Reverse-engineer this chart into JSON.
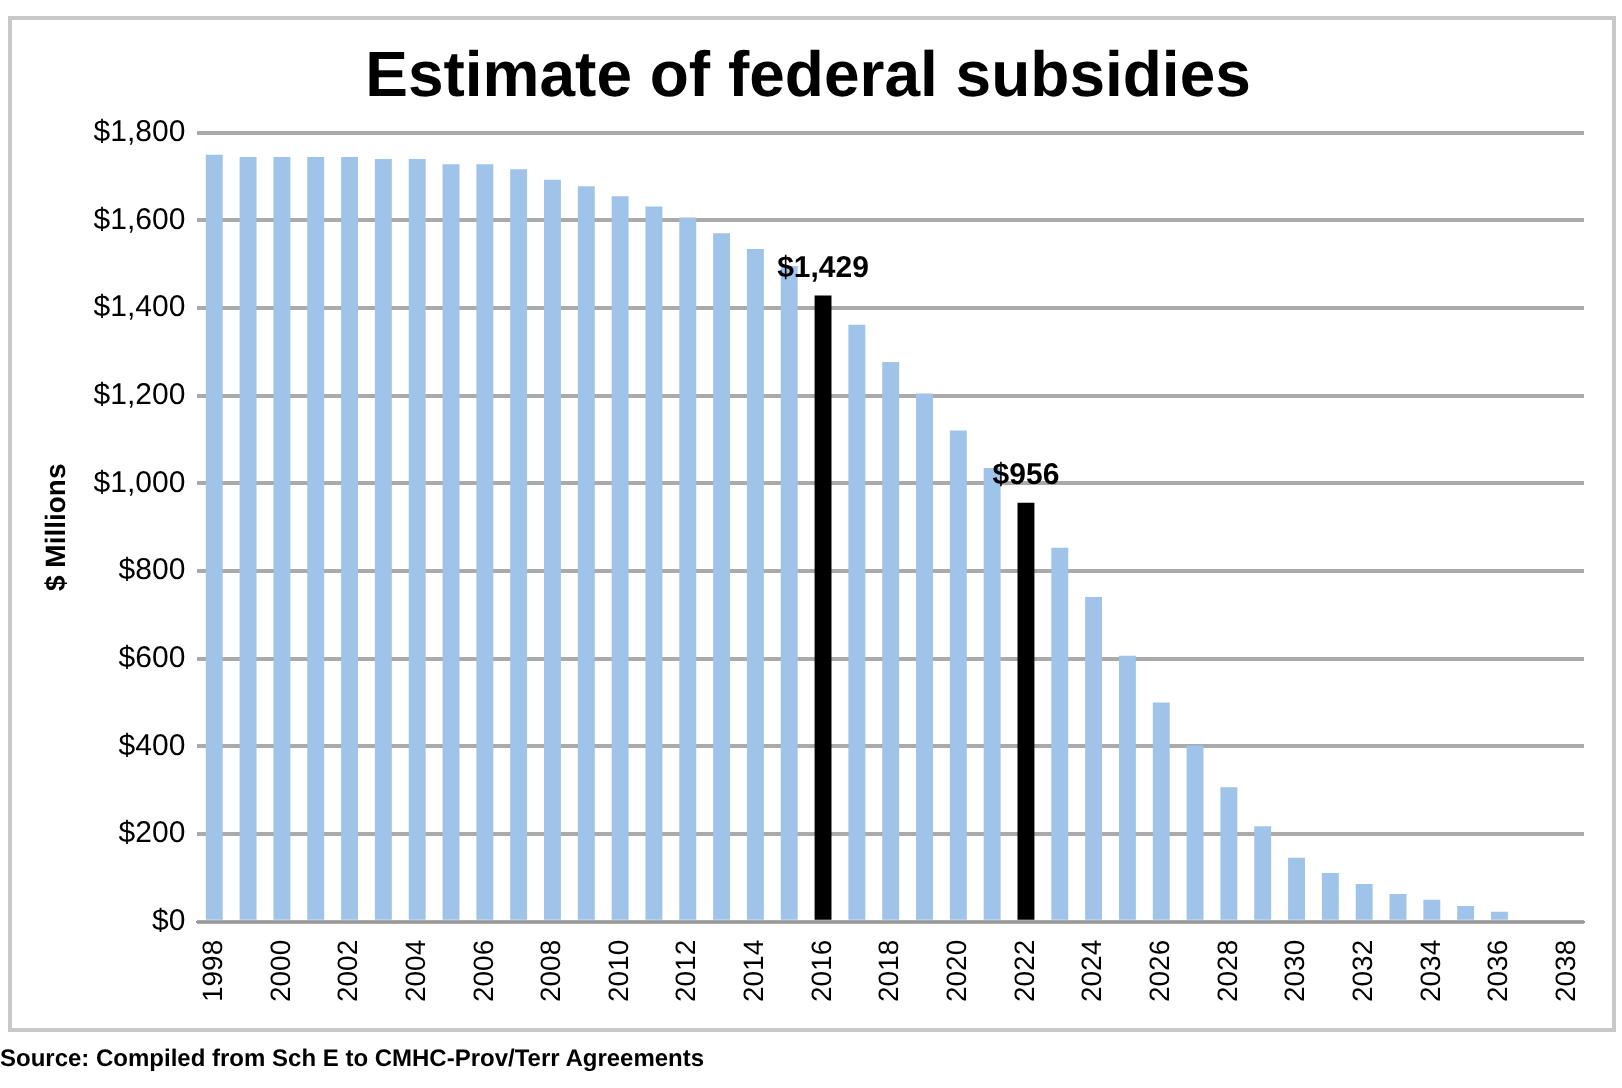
{
  "chart_data": {
    "type": "bar",
    "title": "Estimate of federal subsidies",
    "ylabel": "$ Millions",
    "categories": [
      "1998",
      null,
      "2000",
      null,
      "2002",
      null,
      "2004",
      null,
      "2006",
      null,
      "2008",
      null,
      "2010",
      null,
      "2012",
      null,
      "2014",
      null,
      "2016",
      null,
      "2018",
      null,
      "2020",
      null,
      "2022",
      null,
      "2024",
      null,
      "2026",
      null,
      "2028",
      null,
      "2030",
      null,
      "2032",
      null,
      "2034",
      null,
      "2036",
      null,
      "2038"
    ],
    "values": [
      1750,
      1745,
      1745,
      1745,
      1745,
      1740,
      1740,
      1728,
      1728,
      1717,
      1693,
      1678,
      1655,
      1632,
      1607,
      1571,
      1535,
      1496,
      1429,
      1362,
      1277,
      1205,
      1121,
      1035,
      956,
      853,
      741,
      607,
      500,
      402,
      307,
      218,
      146,
      111,
      86,
      63,
      50,
      36,
      23,
      0,
      0
    ],
    "colors": [
      "#9fc3e9",
      "#9fc3e9",
      "#9fc3e9",
      "#9fc3e9",
      "#9fc3e9",
      "#9fc3e9",
      "#9fc3e9",
      "#9fc3e9",
      "#9fc3e9",
      "#9fc3e9",
      "#9fc3e9",
      "#9fc3e9",
      "#9fc3e9",
      "#9fc3e9",
      "#9fc3e9",
      "#9fc3e9",
      "#9fc3e9",
      "#9fc3e9",
      "#000000",
      "#9fc3e9",
      "#9fc3e9",
      "#9fc3e9",
      "#9fc3e9",
      "#9fc3e9",
      "#000000",
      "#9fc3e9",
      "#9fc3e9",
      "#9fc3e9",
      "#9fc3e9",
      "#9fc3e9",
      "#9fc3e9",
      "#9fc3e9",
      "#9fc3e9",
      "#9fc3e9",
      "#9fc3e9",
      "#9fc3e9",
      "#9fc3e9",
      "#9fc3e9",
      "#9fc3e9",
      "#9fc3e9",
      "#9fc3e9"
    ],
    "value_labels": [
      null,
      null,
      null,
      null,
      null,
      null,
      null,
      null,
      null,
      null,
      null,
      null,
      null,
      null,
      null,
      null,
      null,
      null,
      "$1,429",
      null,
      null,
      null,
      null,
      null,
      "$956",
      null,
      null,
      null,
      null,
      null,
      null,
      null,
      null,
      null,
      null,
      null,
      null,
      null,
      null,
      null,
      null
    ],
    "ylim": [
      0,
      1800
    ],
    "yticks": [
      {
        "value": 0,
        "label": "$0"
      },
      {
        "value": 200,
        "label": "$200"
      },
      {
        "value": 400,
        "label": "$400"
      },
      {
        "value": 600,
        "label": "$600"
      },
      {
        "value": 800,
        "label": "$800"
      },
      {
        "value": 1000,
        "label": "$1,000"
      },
      {
        "value": 1200,
        "label": "$1,200"
      },
      {
        "value": 1400,
        "label": "$1,400"
      },
      {
        "value": 1600,
        "label": "$1,600"
      },
      {
        "value": 1800,
        "label": "$1,800"
      }
    ],
    "grid": "y",
    "legend": false,
    "annotations": [
      "Source: Compiled from Sch E to CMHC-Prov/Terr Agreements"
    ]
  }
}
